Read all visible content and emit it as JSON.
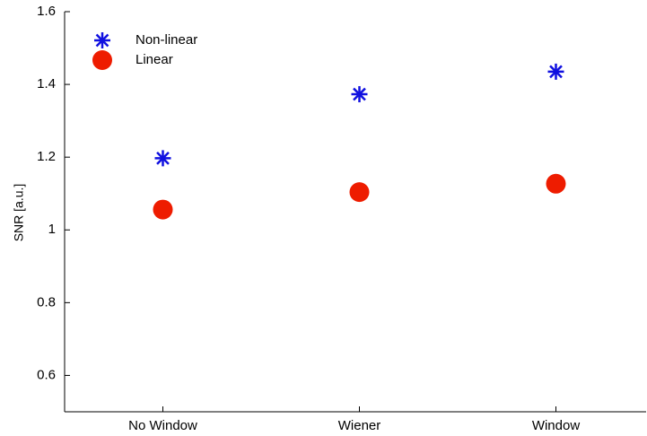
{
  "chart_data": {
    "type": "scatter",
    "y_label": "SNR [a.u.]",
    "categories": [
      "No Window",
      "Wiener",
      "Window"
    ],
    "series": [
      {
        "name": "Non-linear",
        "color": "#1010e0",
        "marker": "asterisk",
        "values": [
          1.197,
          1.373,
          1.435
        ]
      },
      {
        "name": "Linear",
        "color": "#ee1c00",
        "marker": "circle",
        "values": [
          1.056,
          1.104,
          1.127
        ]
      }
    ],
    "ylim": [
      0.5,
      1.6
    ],
    "yticks": [
      0.6,
      0.8,
      1,
      1.2,
      1.4,
      1.6
    ],
    "grid": false,
    "legend": "upper-left"
  }
}
